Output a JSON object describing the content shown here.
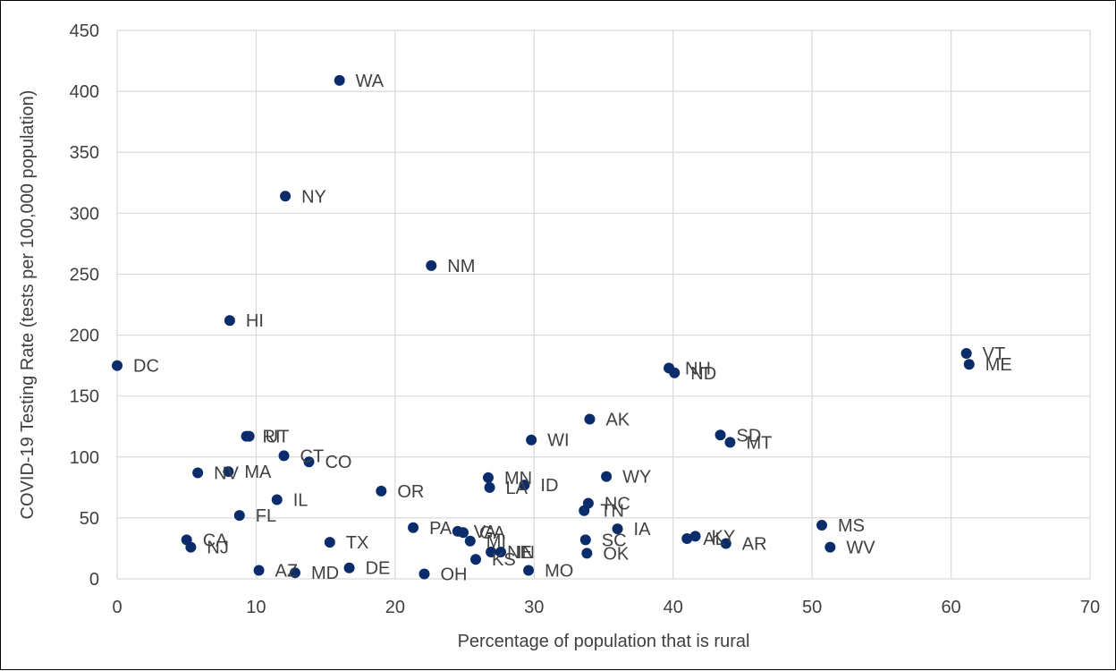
{
  "chart_data": {
    "type": "scatter",
    "title": "",
    "xlabel": "Percentage of population that is rural",
    "ylabel": "COVID-19 Testing Rate (tests per 100,000 population)",
    "xlim": [
      0,
      70
    ],
    "ylim": [
      0,
      450
    ],
    "xticks": [
      0,
      10,
      20,
      30,
      40,
      50,
      60,
      70
    ],
    "yticks": [
      0,
      50,
      100,
      150,
      200,
      250,
      300,
      350,
      400,
      450
    ],
    "grid": true,
    "legend": "none",
    "marker_color": "#0b2c6b",
    "points": [
      {
        "label": "WA",
        "x": 16.0,
        "y": 409
      },
      {
        "label": "NY",
        "x": 12.1,
        "y": 314
      },
      {
        "label": "NM",
        "x": 22.6,
        "y": 257
      },
      {
        "label": "HI",
        "x": 8.1,
        "y": 212
      },
      {
        "label": "DC",
        "x": 0.0,
        "y": 175
      },
      {
        "label": "VT",
        "x": 61.1,
        "y": 185
      },
      {
        "label": "ME",
        "x": 61.3,
        "y": 176
      },
      {
        "label": "NH",
        "x": 39.7,
        "y": 173
      },
      {
        "label": "ND",
        "x": 40.1,
        "y": 169
      },
      {
        "label": "AK",
        "x": 34.0,
        "y": 131
      },
      {
        "label": "SD",
        "x": 43.4,
        "y": 118
      },
      {
        "label": "MT",
        "x": 44.1,
        "y": 112
      },
      {
        "label": "WI",
        "x": 29.8,
        "y": 114
      },
      {
        "label": "RI",
        "x": 9.3,
        "y": 117
      },
      {
        "label": "UT",
        "x": 9.5,
        "y": 117
      },
      {
        "label": "CT",
        "x": 12.0,
        "y": 101
      },
      {
        "label": "CO",
        "x": 13.8,
        "y": 96
      },
      {
        "label": "NV",
        "x": 5.8,
        "y": 87
      },
      {
        "label": "MA",
        "x": 8.0,
        "y": 88
      },
      {
        "label": "WY",
        "x": 35.2,
        "y": 84
      },
      {
        "label": "MN",
        "x": 26.7,
        "y": 83
      },
      {
        "label": "ID",
        "x": 29.3,
        "y": 77
      },
      {
        "label": "LA",
        "x": 26.8,
        "y": 75
      },
      {
        "label": "OR",
        "x": 19.0,
        "y": 72
      },
      {
        "label": "IL",
        "x": 11.5,
        "y": 65
      },
      {
        "label": "NC",
        "x": 33.9,
        "y": 62
      },
      {
        "label": "TN",
        "x": 33.6,
        "y": 56
      },
      {
        "label": "FL",
        "x": 8.8,
        "y": 52
      },
      {
        "label": "MS",
        "x": 50.7,
        "y": 44
      },
      {
        "label": "PA",
        "x": 21.3,
        "y": 42
      },
      {
        "label": "IA",
        "x": 36.0,
        "y": 41
      },
      {
        "label": "VA",
        "x": 24.5,
        "y": 39
      },
      {
        "label": "GA",
        "x": 24.9,
        "y": 38
      },
      {
        "label": "KY",
        "x": 41.6,
        "y": 35
      },
      {
        "label": "AL",
        "x": 41.0,
        "y": 33
      },
      {
        "label": "CA",
        "x": 5.0,
        "y": 32
      },
      {
        "label": "SC",
        "x": 33.7,
        "y": 32
      },
      {
        "label": "MI",
        "x": 25.4,
        "y": 31
      },
      {
        "label": "TX",
        "x": 15.3,
        "y": 30
      },
      {
        "label": "AR",
        "x": 43.8,
        "y": 29
      },
      {
        "label": "NJ",
        "x": 5.3,
        "y": 26
      },
      {
        "label": "WV",
        "x": 51.3,
        "y": 26
      },
      {
        "label": "IN",
        "x": 27.6,
        "y": 22
      },
      {
        "label": "NE",
        "x": 26.9,
        "y": 22
      },
      {
        "label": "OK",
        "x": 33.8,
        "y": 21
      },
      {
        "label": "KS",
        "x": 25.8,
        "y": 16
      },
      {
        "label": "DE",
        "x": 16.7,
        "y": 9
      },
      {
        "label": "AZ",
        "x": 10.2,
        "y": 7
      },
      {
        "label": "MO",
        "x": 29.6,
        "y": 7
      },
      {
        "label": "MD",
        "x": 12.8,
        "y": 5
      },
      {
        "label": "OH",
        "x": 22.1,
        "y": 4
      }
    ]
  }
}
